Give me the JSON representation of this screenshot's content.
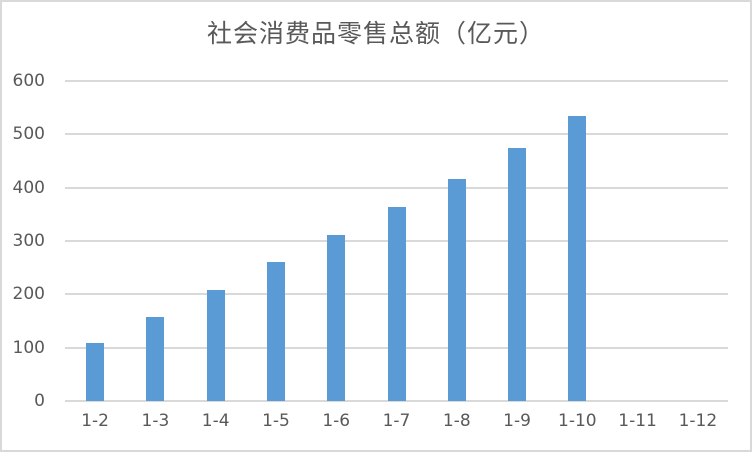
{
  "chart_data": {
    "type": "bar",
    "title": "社会消费品零售总额（亿元）",
    "xlabel": "",
    "ylabel": "",
    "categories": [
      "1-2",
      "1-3",
      "1-4",
      "1-5",
      "1-6",
      "1-7",
      "1-8",
      "1-9",
      "1-10",
      "1-11",
      "1-12"
    ],
    "values": [
      109,
      158,
      209,
      260,
      311,
      364,
      416,
      475,
      535,
      null,
      null
    ],
    "ylim": [
      0,
      600
    ],
    "yticks": [
      0,
      100,
      200,
      300,
      400,
      500,
      600
    ],
    "grid": true,
    "legend": null,
    "bar_color": "#5b9bd5"
  }
}
